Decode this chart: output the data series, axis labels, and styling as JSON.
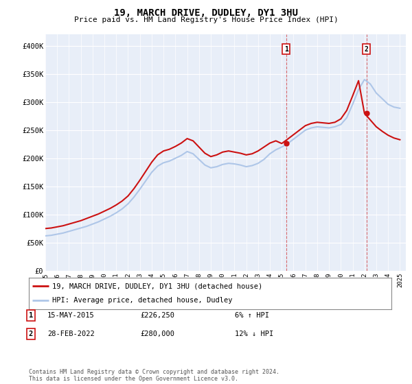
{
  "title": "19, MARCH DRIVE, DUDLEY, DY1 3HU",
  "subtitle": "Price paid vs. HM Land Registry's House Price Index (HPI)",
  "xlim_start": 1995.0,
  "xlim_end": 2025.5,
  "ylim_min": 0,
  "ylim_max": 420000,
  "yticks": [
    0,
    50000,
    100000,
    150000,
    200000,
    250000,
    300000,
    350000,
    400000
  ],
  "ytick_labels": [
    "£0",
    "£50K",
    "£100K",
    "£150K",
    "£200K",
    "£250K",
    "£300K",
    "£350K",
    "£400K"
  ],
  "hpi_color": "#aec6e8",
  "price_color": "#cc1111",
  "background_color": "#e8eef8",
  "marker1_x": 2015.37,
  "marker1_y": 226250,
  "marker1_date": "15-MAY-2015",
  "marker1_price": "£226,250",
  "marker1_hpi": "6% ↑ HPI",
  "marker2_x": 2022.16,
  "marker2_y": 280000,
  "marker2_date": "28-FEB-2022",
  "marker2_price": "£280,000",
  "marker2_hpi": "12% ↓ HPI",
  "legend_line1": "19, MARCH DRIVE, DUDLEY, DY1 3HU (detached house)",
  "legend_line2": "HPI: Average price, detached house, Dudley",
  "footer": "Contains HM Land Registry data © Crown copyright and database right 2024.\nThis data is licensed under the Open Government Licence v3.0.",
  "hpi_years": [
    1995,
    1995.5,
    1996,
    1996.5,
    1997,
    1997.5,
    1998,
    1998.5,
    1999,
    1999.5,
    2000,
    2000.5,
    2001,
    2001.5,
    2002,
    2002.5,
    2003,
    2003.5,
    2004,
    2004.5,
    2005,
    2005.5,
    2006,
    2006.5,
    2007,
    2007.5,
    2008,
    2008.5,
    2009,
    2009.5,
    2010,
    2010.5,
    2011,
    2011.5,
    2012,
    2012.5,
    2013,
    2013.5,
    2014,
    2014.5,
    2015,
    2015.5,
    2016,
    2016.5,
    2017,
    2017.5,
    2018,
    2018.5,
    2019,
    2019.5,
    2020,
    2020.5,
    2021,
    2021.5,
    2022,
    2022.5,
    2023,
    2023.5,
    2024,
    2024.5,
    2025
  ],
  "hpi_values": [
    62000,
    63000,
    65000,
    67000,
    70000,
    73000,
    76000,
    79000,
    83000,
    87000,
    92000,
    97000,
    103000,
    110000,
    119000,
    131000,
    145000,
    160000,
    175000,
    186000,
    192000,
    195000,
    200000,
    205000,
    212000,
    208000,
    198000,
    188000,
    183000,
    185000,
    189000,
    191000,
    190000,
    188000,
    185000,
    187000,
    191000,
    198000,
    208000,
    215000,
    220000,
    226000,
    234000,
    242000,
    250000,
    254000,
    256000,
    255000,
    254000,
    256000,
    260000,
    272000,
    296000,
    322000,
    340000,
    332000,
    316000,
    306000,
    296000,
    291000,
    289000
  ],
  "price_years": [
    1995,
    1995.5,
    1996,
    1996.5,
    1997,
    1997.5,
    1998,
    1998.5,
    1999,
    1999.5,
    2000,
    2000.5,
    2001,
    2001.5,
    2002,
    2002.5,
    2003,
    2003.5,
    2004,
    2004.5,
    2005,
    2005.5,
    2006,
    2006.5,
    2007,
    2007.5,
    2008,
    2008.5,
    2009,
    2009.5,
    2010,
    2010.5,
    2011,
    2011.5,
    2012,
    2012.5,
    2013,
    2013.5,
    2014,
    2014.5,
    2015,
    2015.5,
    2016,
    2016.5,
    2017,
    2017.5,
    2018,
    2018.5,
    2019,
    2019.5,
    2020,
    2020.5,
    2021,
    2021.5,
    2022,
    2022.5,
    2023,
    2023.5,
    2024,
    2024.5,
    2025
  ],
  "price_values": [
    75000,
    76000,
    78000,
    80000,
    83000,
    86000,
    89000,
    93000,
    97000,
    101000,
    106000,
    111000,
    117000,
    124000,
    133000,
    146000,
    161000,
    177000,
    193000,
    206000,
    213000,
    216000,
    221000,
    227000,
    235000,
    231000,
    220000,
    209000,
    203000,
    206000,
    211000,
    213000,
    211000,
    209000,
    206000,
    208000,
    213000,
    220000,
    227000,
    231000,
    226250,
    234000,
    242000,
    250000,
    258000,
    262000,
    264000,
    263000,
    262000,
    264000,
    270000,
    285000,
    311000,
    338000,
    280000,
    268000,
    256000,
    248000,
    241000,
    236000,
    233000
  ]
}
